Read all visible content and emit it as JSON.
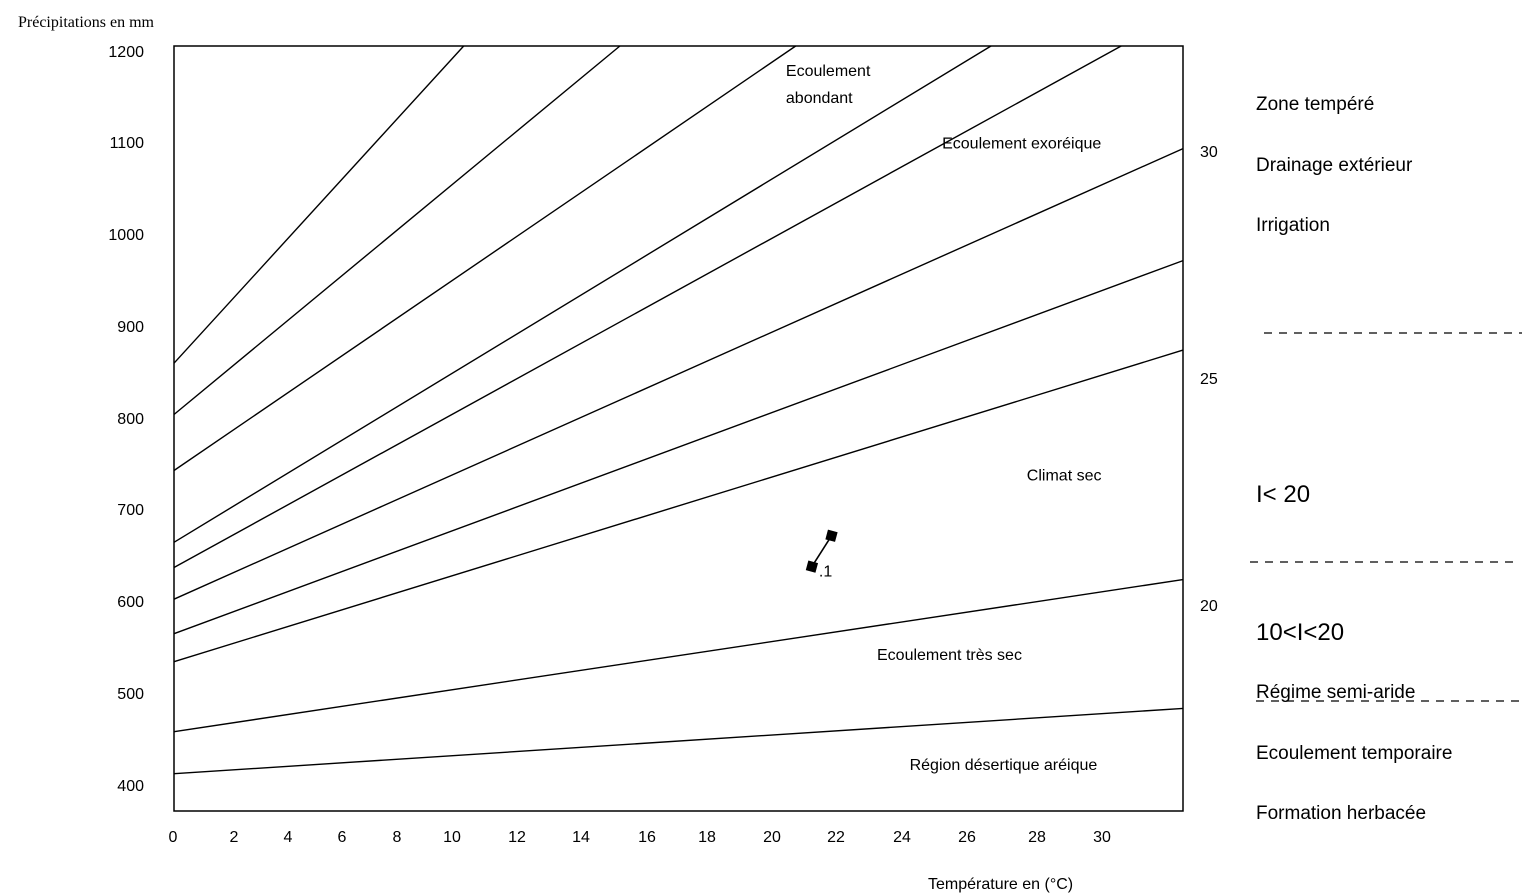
{
  "chart_data": {
    "type": "line",
    "ylabel": "Précipitations en mm",
    "xlabel": "Température en (°C)",
    "x_ticks": [
      "0",
      "2",
      "4",
      "6",
      "8",
      "10",
      "12",
      "14",
      "16",
      "18",
      "20",
      "22",
      "24",
      "26",
      "28",
      "30"
    ],
    "y_ticks": [
      "1200",
      "1100",
      "1000",
      "900",
      "800",
      "700",
      "600",
      "500",
      "400"
    ],
    "right_ticks": [
      {
        "label": "30",
        "value": 1100
      },
      {
        "label": "25",
        "value": 850
      },
      {
        "label": "20",
        "value": 600
      }
    ],
    "series": [
      {
        "values": [
          [
            0,
            860
          ],
          [
            8.9,
            1200
          ]
        ]
      },
      {
        "values": [
          [
            0,
            805
          ],
          [
            13.7,
            1200
          ]
        ]
      },
      {
        "values": [
          [
            0,
            745
          ],
          [
            19.1,
            1200
          ]
        ]
      },
      {
        "values": [
          [
            0,
            668
          ],
          [
            25.1,
            1200
          ]
        ]
      },
      {
        "values": [
          [
            0,
            641
          ],
          [
            29.1,
            1200
          ]
        ]
      },
      {
        "values": [
          [
            0,
            607
          ],
          [
            31,
            1090
          ]
        ]
      },
      {
        "values": [
          [
            0,
            570
          ],
          [
            31,
            970
          ]
        ]
      },
      {
        "values": [
          [
            0,
            540
          ],
          [
            31,
            874
          ]
        ]
      },
      {
        "values": [
          [
            0,
            465
          ],
          [
            31,
            628
          ]
        ]
      },
      {
        "values": [
          [
            0,
            420
          ],
          [
            31,
            490
          ]
        ]
      }
    ],
    "points": [
      {
        "x": 19.6,
        "y": 642,
        "label": ".1"
      },
      {
        "x": 20.2,
        "y": 675,
        "label": ""
      }
    ],
    "annotations": [
      {
        "text": "Ecoulement",
        "x": 18.8,
        "y": 1168
      },
      {
        "text": "abondant",
        "x": 18.8,
        "y": 1139
      },
      {
        "text": "Ecoulement exoréique",
        "x": 23.6,
        "y": 1090
      },
      {
        "text": "Climat sec",
        "x": 26.2,
        "y": 734
      },
      {
        "text": "Ecoulement très sec",
        "x": 21.6,
        "y": 542
      },
      {
        "text": "Région désertique aréique",
        "x": 22.6,
        "y": 424
      }
    ],
    "xlim": [
      0,
      31
    ],
    "ylim": [
      380,
      1200
    ]
  },
  "side_labels": {
    "zone_tempere": "Zone tempéré",
    "drainage": "Drainage extérieur",
    "irrigation": "Irrigation",
    "i_lt_20": "I< 20",
    "range_10_20": "10<I<20",
    "regime": "Régime semi-aride",
    "ecoulement_temp": "Ecoulement temporaire",
    "formation": "Formation herbacée"
  }
}
